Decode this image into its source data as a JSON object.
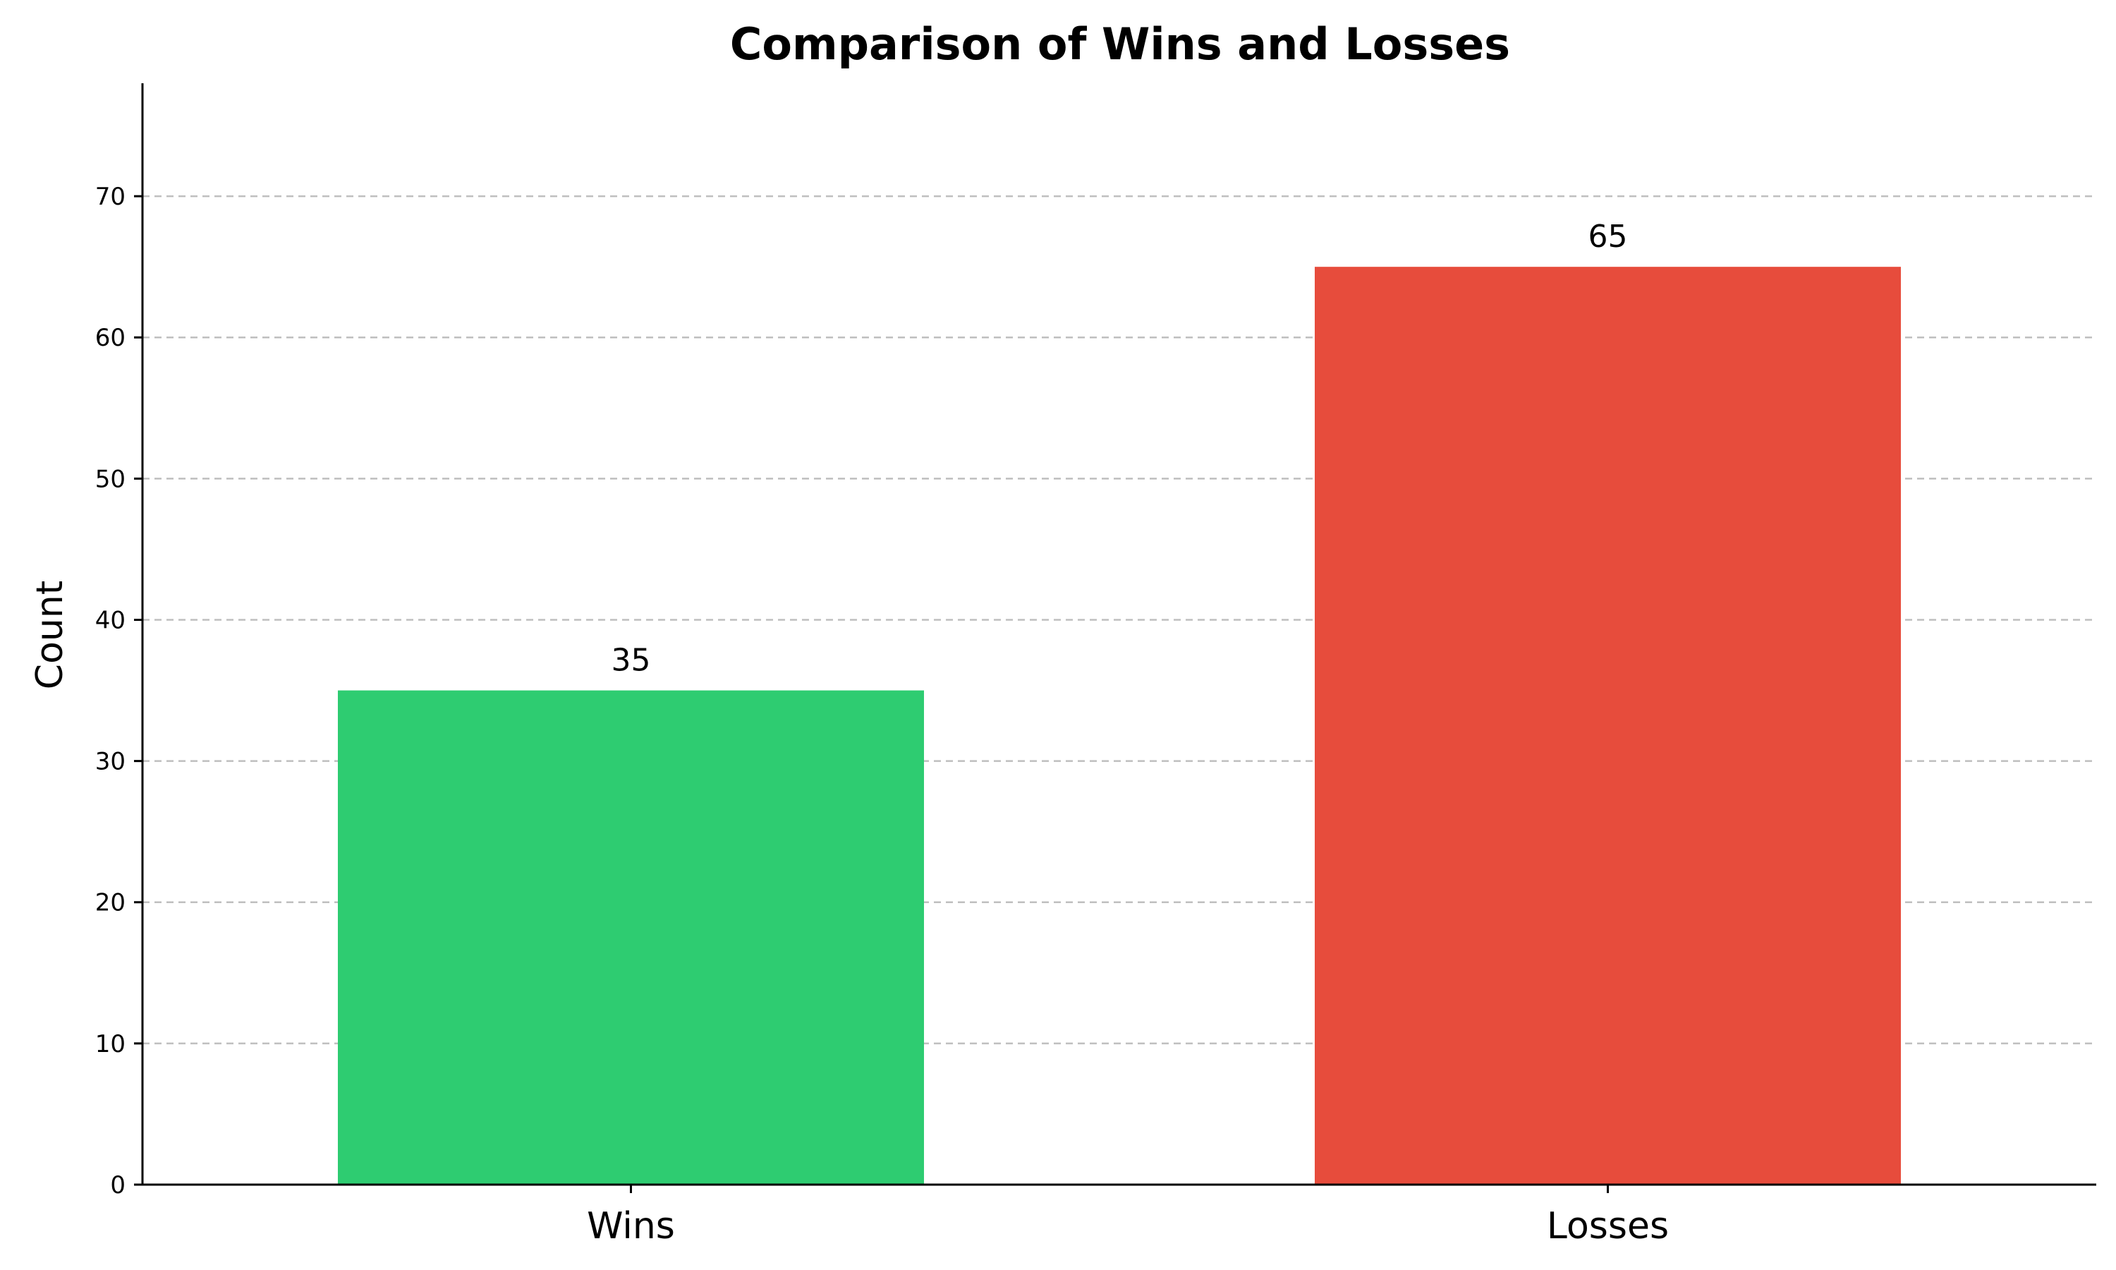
{
  "chart_data": {
    "type": "bar",
    "title": "Comparison of Wins and Losses",
    "xlabel": "",
    "ylabel": "Count",
    "categories": [
      "Wins",
      "Losses"
    ],
    "values": [
      35,
      65
    ],
    "data_labels": [
      "35",
      "65"
    ],
    "colors": [
      "#2ecc71",
      "#e74c3c"
    ],
    "ylim": [
      0,
      78
    ],
    "yticks": [
      0,
      10,
      20,
      30,
      40,
      50,
      60,
      70
    ],
    "grid": "y-dashed",
    "legend": "none"
  }
}
